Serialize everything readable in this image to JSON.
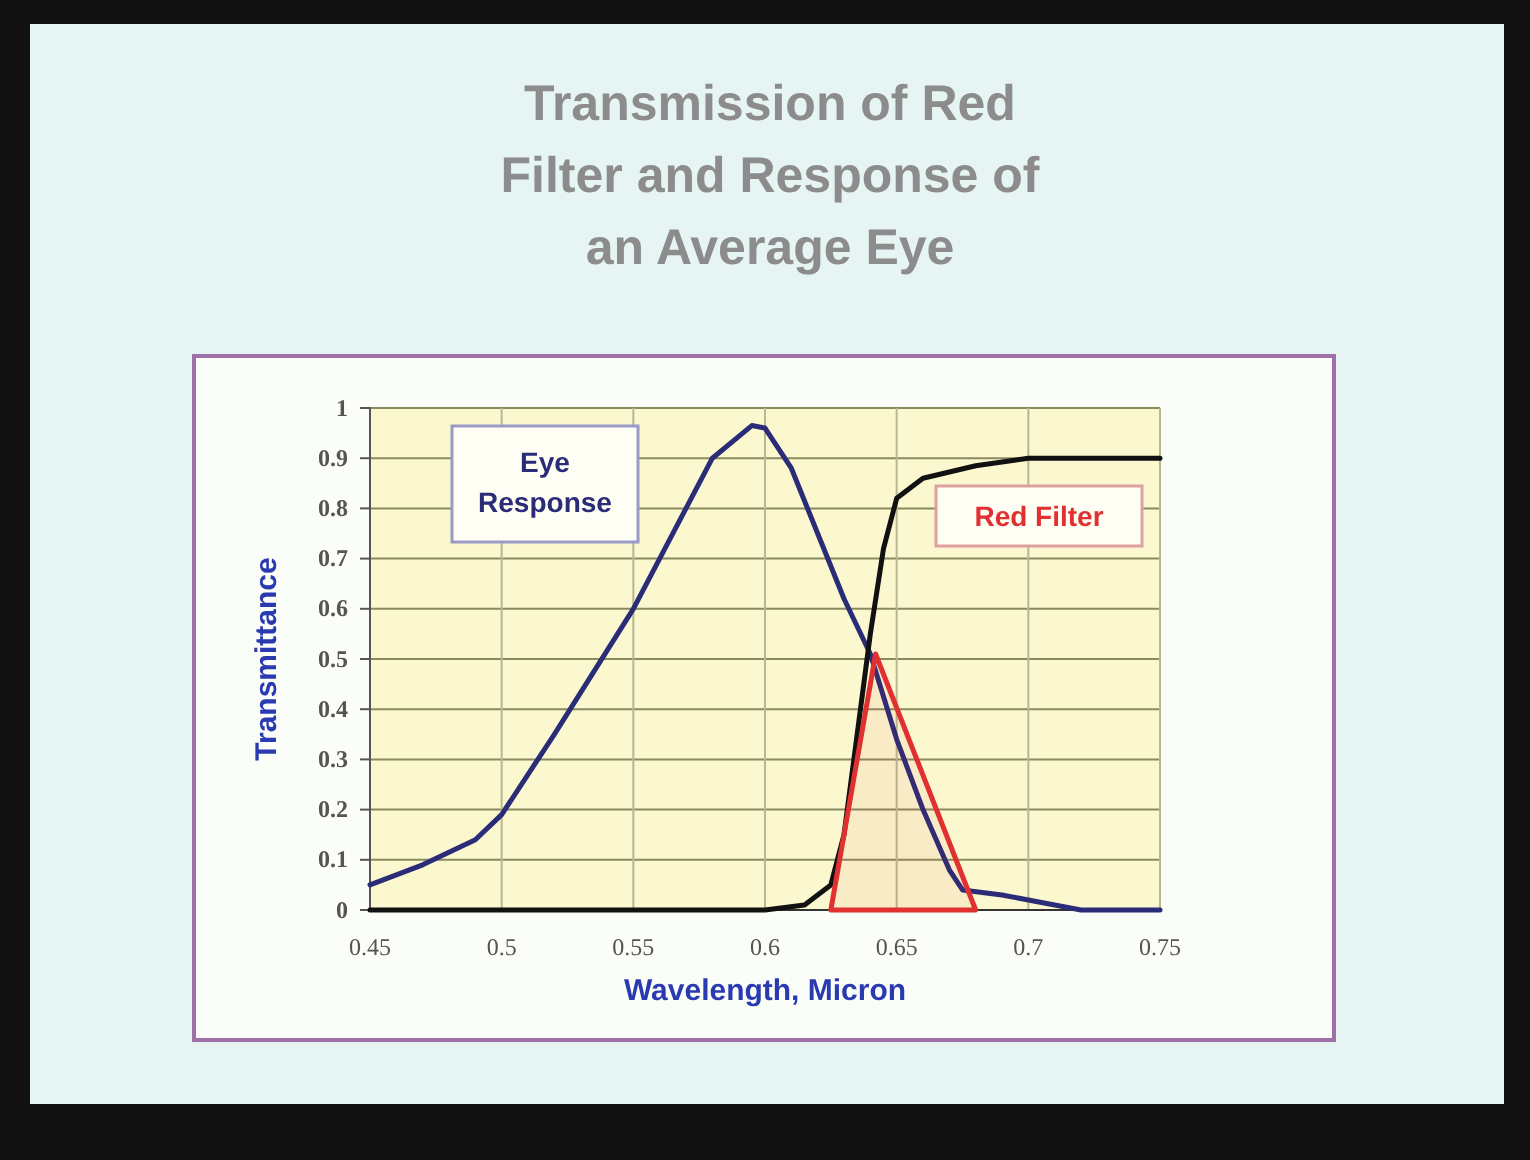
{
  "chart_data": {
    "type": "line",
    "title": "Transmission of Red Filter and Response of an Average Eye",
    "xlabel": "Wavelength, Micron",
    "ylabel": "Transmittance",
    "xlim": [
      0.45,
      0.75
    ],
    "xticks": [
      0.45,
      0.5,
      0.55,
      0.6,
      0.65,
      0.7,
      0.75
    ],
    "ylim": [
      0,
      1
    ],
    "yticks": [
      0,
      0.1,
      0.2,
      0.3,
      0.4,
      0.5,
      0.6,
      0.7,
      0.8,
      0.9,
      1
    ],
    "grid": true,
    "marker": "none",
    "line_style": "solid",
    "series": [
      {
        "name": "Eye Response",
        "color": "#2a2c78",
        "x": [
          0.45,
          0.47,
          0.49,
          0.5,
          0.52,
          0.55,
          0.57,
          0.58,
          0.595,
          0.6,
          0.61,
          0.62,
          0.63,
          0.64,
          0.65,
          0.66,
          0.67,
          0.675,
          0.69,
          0.7,
          0.72,
          0.75
        ],
        "values": [
          0.05,
          0.09,
          0.14,
          0.19,
          0.35,
          0.6,
          0.8,
          0.9,
          0.965,
          0.96,
          0.88,
          0.75,
          0.62,
          0.51,
          0.34,
          0.2,
          0.08,
          0.04,
          0.03,
          0.02,
          0,
          0
        ]
      },
      {
        "name": "Red Filter",
        "color": "#111111",
        "x": [
          0.45,
          0.6,
          0.615,
          0.625,
          0.63,
          0.635,
          0.64,
          0.645,
          0.65,
          0.66,
          0.68,
          0.7,
          0.75
        ],
        "values": [
          0,
          0,
          0.01,
          0.05,
          0.15,
          0.35,
          0.55,
          0.72,
          0.82,
          0.86,
          0.885,
          0.9,
          0.9
        ]
      },
      {
        "type": "area",
        "color": "#e03030",
        "x": [
          0.625,
          0.642,
          0.68
        ],
        "values": [
          0,
          0.51,
          0
        ]
      }
    ]
  }
}
